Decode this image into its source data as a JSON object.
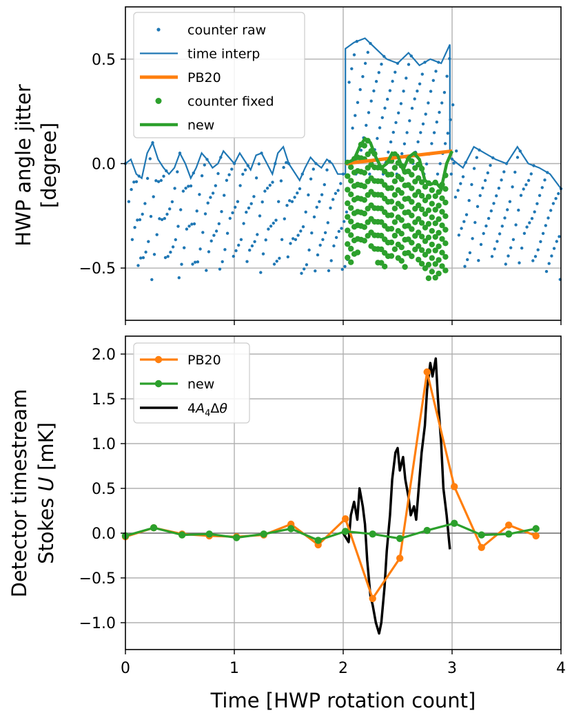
{
  "colors": {
    "blue": "#1f77b4",
    "orange": "#ff7f0e",
    "green": "#2ca02c",
    "black": "#000000",
    "grid": "#b0b0b0"
  },
  "chart_data": [
    {
      "type": "line",
      "ylabel_line1": "HWP angle jitter",
      "ylabel_line2": "[degree]",
      "xlim": [
        0,
        4
      ],
      "ylim": [
        -0.75,
        0.75
      ],
      "xticks": [
        0,
        1,
        2,
        3,
        4
      ],
      "yticks": [
        0.5,
        0.0,
        -0.5
      ],
      "ytick_labels": [
        "0.5",
        "0.0",
        "−0.5"
      ],
      "grid": true,
      "legend_position": "upper-left",
      "legend": [
        "counter raw",
        "time interp",
        "PB20",
        "counter fixed",
        "new"
      ],
      "series": [
        {
          "name": "counter raw",
          "style": "dots",
          "note_values": "sawtooth dots: each rotation spans ~32 samples; envelope follows the time-interp curve",
          "envelope_top": [
            [
              0,
              0.0
            ],
            [
              0.25,
              -0.05
            ],
            [
              0.3,
              0.1
            ],
            [
              0.5,
              -0.05
            ],
            [
              0.75,
              0.0
            ],
            [
              1.0,
              0.05
            ],
            [
              1.25,
              0.0
            ],
            [
              1.5,
              0.05
            ],
            [
              1.75,
              -0.05
            ],
            [
              2.0,
              0.0
            ]
          ],
          "envelope_bottom": [
            [
              0,
              -0.5
            ],
            [
              0.5,
              -0.55
            ],
            [
              1.0,
              -0.5
            ],
            [
              1.5,
              -0.48
            ],
            [
              2.0,
              -0.5
            ]
          ]
        },
        {
          "name": "time interp",
          "x": [
            0.0,
            0.05,
            0.1,
            0.15,
            0.2,
            0.25,
            0.3,
            0.35,
            0.4,
            0.45,
            0.5,
            0.55,
            0.6,
            0.65,
            0.7,
            0.75,
            0.8,
            0.85,
            0.9,
            0.95,
            1.0,
            1.05,
            1.1,
            1.15,
            1.2,
            1.25,
            1.3,
            1.35,
            1.4,
            1.45,
            1.5,
            1.55,
            1.6,
            1.65,
            1.7,
            1.75,
            1.8,
            1.85,
            1.9,
            1.95,
            2.02,
            2.02,
            2.1,
            2.2,
            2.3,
            2.4,
            2.5,
            2.6,
            2.7,
            2.8,
            2.9,
            2.98,
            2.98,
            3.05,
            3.1,
            3.2,
            3.3,
            3.4,
            3.5,
            3.6,
            3.7,
            3.8,
            3.9,
            4.0
          ],
          "values": [
            0.0,
            0.02,
            -0.05,
            -0.07,
            0.05,
            0.1,
            0.02,
            -0.02,
            -0.05,
            -0.02,
            0.05,
            0.0,
            -0.07,
            -0.02,
            0.05,
            0.02,
            -0.02,
            0.0,
            0.06,
            0.03,
            0.0,
            0.05,
            0.01,
            -0.03,
            0.04,
            0.05,
            0.0,
            -0.05,
            0.05,
            0.08,
            0.0,
            -0.04,
            -0.08,
            -0.02,
            0.03,
            0.0,
            -0.02,
            0.02,
            0.0,
            -0.05,
            -0.05,
            0.55,
            0.58,
            0.6,
            0.55,
            0.5,
            0.48,
            0.53,
            0.47,
            0.5,
            0.48,
            0.57,
            0.03,
            0.0,
            -0.02,
            0.08,
            0.05,
            0.02,
            0.0,
            0.08,
            0.0,
            -0.02,
            -0.05,
            -0.12
          ]
        },
        {
          "name": "PB20",
          "x": [
            2.02,
            3.0
          ],
          "values": [
            0.0,
            0.06
          ]
        },
        {
          "name": "counter fixed",
          "style": "dots"
        },
        {
          "name": "new",
          "x": [
            2.02,
            2.1,
            2.15,
            2.2,
            2.25,
            2.3,
            2.35,
            2.4,
            2.45,
            2.5,
            2.55,
            2.6,
            2.65,
            2.7,
            2.75,
            2.8,
            2.85,
            2.9,
            2.95,
            3.0
          ],
          "values": [
            0.0,
            0.02,
            0.08,
            0.12,
            0.1,
            0.03,
            -0.02,
            0.0,
            0.05,
            0.04,
            -0.03,
            0.03,
            0.05,
            0.02,
            -0.08,
            -0.1,
            -0.09,
            -0.12,
            0.0,
            0.06
          ]
        }
      ]
    },
    {
      "type": "line",
      "xlabel": "Time [HWP rotation count]",
      "ylabel_line1": "Detector timestream",
      "ylabel_line2_prefix": "Stokes ",
      "ylabel_line2_var": "U",
      "ylabel_line2_suffix": " [mK]",
      "xlim": [
        0,
        4
      ],
      "ylim": [
        -1.3,
        2.2
      ],
      "xticks": [
        0,
        1,
        2,
        3,
        4
      ],
      "xtick_labels": [
        "0",
        "1",
        "2",
        "3",
        "4"
      ],
      "yticks": [
        2.0,
        1.5,
        1.0,
        0.5,
        0.0,
        -0.5,
        -1.0
      ],
      "ytick_labels": [
        "2.0",
        "1.5",
        "1.0",
        "0.5",
        "0.0",
        "−0.5",
        "−1.0"
      ],
      "grid": true,
      "legend_position": "upper-left",
      "legend": [
        "PB20",
        "new",
        "4A4Δθ"
      ],
      "series": [
        {
          "name": "PB20",
          "x": [
            0.0,
            0.26,
            0.52,
            0.77,
            1.02,
            1.27,
            1.52,
            1.77,
            2.02,
            2.27,
            2.52,
            2.77,
            3.02,
            3.27,
            3.52,
            3.77
          ],
          "values": [
            -0.04,
            0.06,
            -0.01,
            -0.03,
            -0.04,
            -0.02,
            0.1,
            -0.13,
            0.16,
            -0.73,
            -0.28,
            1.8,
            0.52,
            -0.16,
            0.09,
            -0.03
          ]
        },
        {
          "name": "new",
          "x": [
            0.0,
            0.26,
            0.52,
            0.77,
            1.02,
            1.27,
            1.52,
            1.77,
            2.02,
            2.27,
            2.52,
            2.77,
            3.02,
            3.27,
            3.52,
            3.77
          ],
          "values": [
            -0.03,
            0.06,
            -0.02,
            -0.01,
            -0.05,
            -0.01,
            0.05,
            -0.08,
            0.02,
            -0.01,
            -0.06,
            0.03,
            0.11,
            -0.02,
            -0.01,
            0.05
          ]
        },
        {
          "name": "4A4Δθ",
          "x": [
            2.0,
            2.05,
            2.07,
            2.1,
            2.13,
            2.15,
            2.18,
            2.2,
            2.22,
            2.25,
            2.27,
            2.3,
            2.33,
            2.35,
            2.38,
            2.4,
            2.43,
            2.45,
            2.48,
            2.5,
            2.52,
            2.55,
            2.57,
            2.6,
            2.62,
            2.65,
            2.67,
            2.7,
            2.72,
            2.75,
            2.77,
            2.8,
            2.82,
            2.85,
            2.87,
            2.9,
            2.92,
            2.95,
            2.98
          ],
          "values": [
            0.0,
            -0.1,
            0.2,
            0.35,
            0.15,
            0.5,
            0.3,
            0.1,
            -0.3,
            -0.7,
            -0.8,
            -1.0,
            -1.12,
            -1.0,
            -0.6,
            -0.2,
            0.2,
            0.6,
            0.9,
            0.95,
            0.7,
            0.85,
            0.6,
            0.4,
            0.2,
            0.3,
            0.15,
            0.6,
            0.9,
            1.2,
            1.6,
            1.9,
            1.75,
            1.95,
            1.5,
            1.0,
            0.5,
            0.2,
            -0.18
          ]
        }
      ]
    }
  ]
}
